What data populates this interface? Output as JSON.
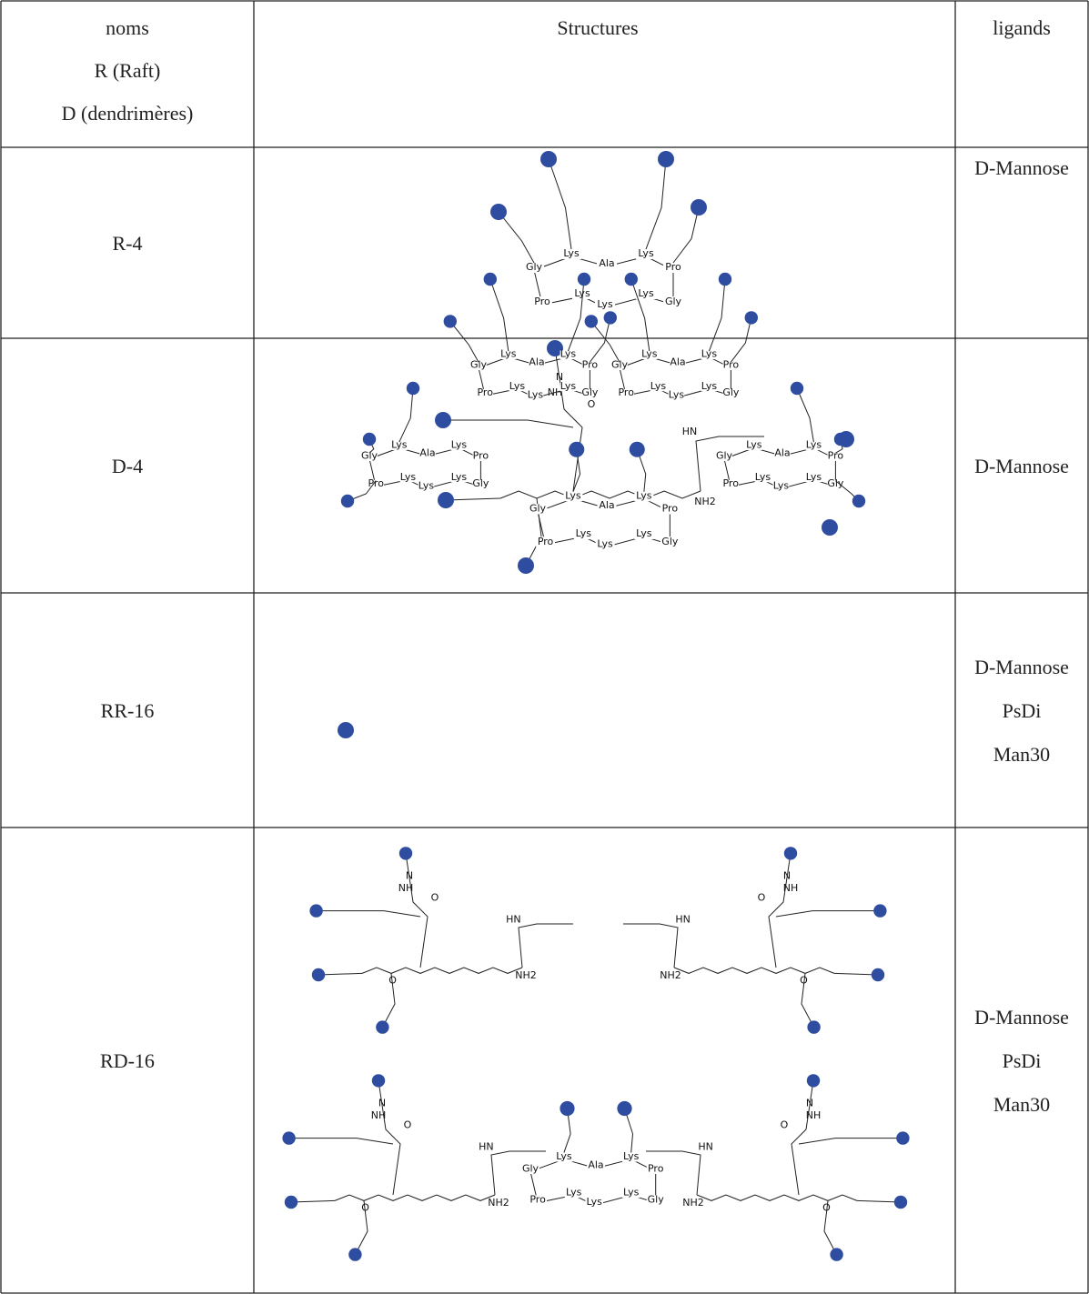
{
  "header": {
    "names": [
      "noms",
      "R (Raft)",
      "D (dendrimères)"
    ],
    "structures": "Structures",
    "ligands": "ligands"
  },
  "rows": [
    {
      "name": "R-4",
      "ligands": [
        "D-Mannose"
      ]
    },
    {
      "name": "D-4",
      "ligands": [
        "D-Mannose"
      ]
    },
    {
      "name": "RR-16",
      "ligands": [
        "D-Mannose",
        "PsDi",
        "Man30"
      ]
    },
    {
      "name": "RD-16",
      "ligands": [
        "D-Mannose",
        "PsDi",
        "Man30"
      ]
    }
  ],
  "structure_labels": {
    "raft": [
      "Lys",
      "Ala",
      "Lys",
      "Gly",
      "Pro",
      "Pro",
      "Lys",
      "Lys",
      "Lys",
      "Gly"
    ],
    "dendron": [
      "NH",
      "O",
      "N",
      "NH2",
      "HN",
      "O"
    ]
  }
}
